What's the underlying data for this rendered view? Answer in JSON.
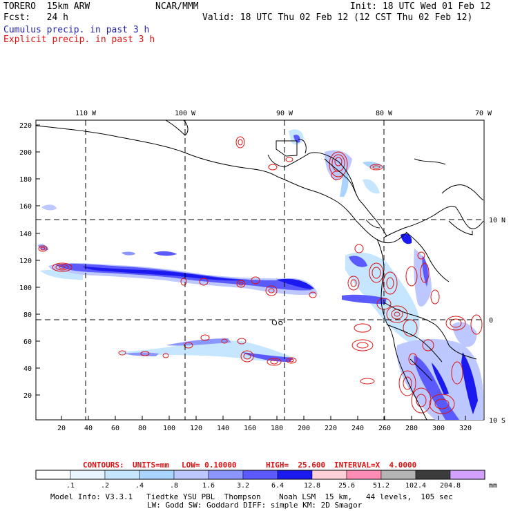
{
  "header": {
    "model": "TORERO  15km ARW",
    "org": "NCAR/MMM",
    "init": "Init: 18 UTC Wed 01 Feb 12",
    "fcst": "Fcst:   24 h",
    "valid": "Valid: 18 UTC Thu 02 Feb 12 (12 CST Thu 02 Feb 12)",
    "field1": "Cumulus precip. in past 3 h",
    "field2": "Explicit precip. in past 3 h"
  },
  "axes": {
    "top_lon_labels": [
      "110 W",
      "100 W",
      "90 W",
      "80 W",
      "70 W"
    ],
    "right_lat_labels": [
      "10 N",
      "0",
      "10 S"
    ],
    "left_ticks": [
      "220",
      "200",
      "180",
      "160",
      "140",
      "120",
      "100",
      "80",
      "60",
      "40",
      "20"
    ],
    "bottom_ticks": [
      "20",
      "40",
      "60",
      "80",
      "100",
      "120",
      "140",
      "160",
      "180",
      "200",
      "220",
      "240",
      "260",
      "280",
      "300",
      "320"
    ]
  },
  "contours": {
    "label": "CONTOURS:",
    "units": "UNITS=mm",
    "low": "LOW= 0.10000",
    "high": "HIGH=  25.600",
    "interval": "INTERVAL=X  4.0000"
  },
  "colorbar": {
    "labels": [
      ".1",
      ".2",
      ".4",
      ".8",
      "1.6",
      "3.2",
      "6.4",
      "12.8",
      "25.6",
      "51.2",
      "102.4",
      "204.8"
    ],
    "unit": "mm",
    "colors": [
      "#ffffff",
      "#e8f4ff",
      "#c6e6ff",
      "#a8d4ff",
      "#bcc8ff",
      "#8c96ff",
      "#5a5aff",
      "#1a1af0",
      "#ffd0d8",
      "#ff8cb4",
      "#b4b4b4",
      "#3c3c3c",
      "#d2a0ff"
    ]
  },
  "footer": {
    "line1": "Model Info: V3.3.1   Tiedtke YSU PBL  Thompson    Noah LSM  15 km,   44 levels,  105 sec",
    "line2": "LW: Godd SW: Goddard DIFF: simple KM: 2D Smagor"
  }
}
